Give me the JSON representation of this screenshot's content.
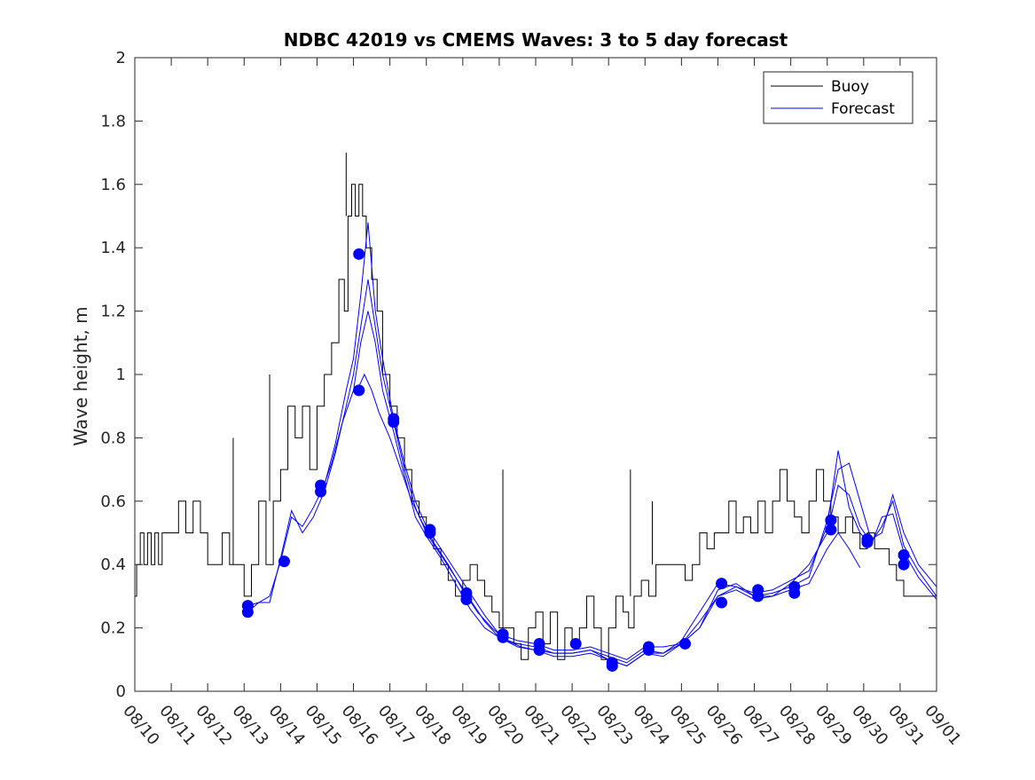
{
  "chart_data": {
    "type": "line",
    "title": "NDBC 42019 vs CMEMS Waves: 3 to 5 day forecast",
    "xlabel": "",
    "ylabel": "Wave height, m",
    "xlim": [
      0,
      22
    ],
    "ylim": [
      0,
      2
    ],
    "grid": false,
    "legend_position": "top-right",
    "x_tick_labels": [
      "08/10",
      "08/11",
      "08/12",
      "08/13",
      "08/14",
      "08/15",
      "08/16",
      "08/17",
      "08/18",
      "08/19",
      "08/20",
      "08/21",
      "08/22",
      "08/23",
      "08/24",
      "08/25",
      "08/26",
      "08/27",
      "08/28",
      "08/29",
      "08/30",
      "08/31",
      "09/01"
    ],
    "y_tick_labels": [
      "0",
      "0.2",
      "0.4",
      "0.6",
      "0.8",
      "1",
      "1.2",
      "1.4",
      "1.6",
      "1.8",
      "2"
    ],
    "colors": {
      "buoy": "#000000",
      "forecast": "#0000ff",
      "axis": "#262626"
    },
    "series": [
      {
        "name": "Buoy",
        "style": "step",
        "x": [
          0,
          0.05,
          0.15,
          0.25,
          0.35,
          0.45,
          0.55,
          0.65,
          0.75,
          0.85,
          1.0,
          1.2,
          1.4,
          1.6,
          1.8,
          2.0,
          2.2,
          2.4,
          2.6,
          2.8,
          3.0,
          3.2,
          3.4,
          3.6,
          3.8,
          4.0,
          4.2,
          4.4,
          4.6,
          4.8,
          5.0,
          5.2,
          5.4,
          5.6,
          5.75,
          5.85,
          5.95,
          6.05,
          6.15,
          6.25,
          6.35,
          6.5,
          6.65,
          6.8,
          7.0,
          7.2,
          7.4,
          7.6,
          7.8,
          8.0,
          8.2,
          8.4,
          8.6,
          8.8,
          9.0,
          9.2,
          9.4,
          9.6,
          9.8,
          10.0,
          10.2,
          10.4,
          10.6,
          10.8,
          11.0,
          11.2,
          11.4,
          11.6,
          11.8,
          12.0,
          12.2,
          12.4,
          12.6,
          12.8,
          13.0,
          13.2,
          13.4,
          13.55,
          13.7,
          13.9,
          14.1,
          14.3,
          14.5,
          14.7,
          14.9,
          15.1,
          15.3,
          15.5,
          15.7,
          15.9,
          16.1,
          16.3,
          16.5,
          16.7,
          16.9,
          17.1,
          17.3,
          17.5,
          17.7,
          17.9,
          18.1,
          18.3,
          18.5,
          18.7,
          18.9,
          19.1,
          19.3,
          19.5,
          19.7,
          19.9,
          20.1,
          20.3,
          20.5,
          20.7,
          20.9,
          21.1,
          21.3,
          21.5,
          21.7
        ],
        "y": [
          0.3,
          0.4,
          0.5,
          0.4,
          0.5,
          0.4,
          0.5,
          0.4,
          0.5,
          0.5,
          0.5,
          0.6,
          0.5,
          0.6,
          0.5,
          0.4,
          0.4,
          0.5,
          0.4,
          0.4,
          0.3,
          0.4,
          0.6,
          0.4,
          0.6,
          0.7,
          0.9,
          0.8,
          0.9,
          0.7,
          0.9,
          1.0,
          1.1,
          1.3,
          1.2,
          1.5,
          1.6,
          1.5,
          1.6,
          1.5,
          1.4,
          1.3,
          1.2,
          1.0,
          0.9,
          0.8,
          0.7,
          0.6,
          0.55,
          0.5,
          0.45,
          0.4,
          0.35,
          0.3,
          0.35,
          0.4,
          0.35,
          0.3,
          0.25,
          0.2,
          0.2,
          0.15,
          0.1,
          0.2,
          0.25,
          0.15,
          0.25,
          0.1,
          0.2,
          0.15,
          0.2,
          0.3,
          0.2,
          0.1,
          0.2,
          0.3,
          0.25,
          0.2,
          0.3,
          0.35,
          0.3,
          0.4,
          0.4,
          0.4,
          0.4,
          0.35,
          0.4,
          0.5,
          0.45,
          0.5,
          0.5,
          0.6,
          0.5,
          0.55,
          0.5,
          0.6,
          0.5,
          0.6,
          0.7,
          0.6,
          0.55,
          0.5,
          0.6,
          0.7,
          0.6,
          0.55,
          0.5,
          0.55,
          0.5,
          0.45,
          0.5,
          0.45,
          0.45,
          0.4,
          0.35,
          0.3,
          0.3,
          0.3,
          0.3
        ],
        "spikes": [
          [
            2.7,
            0.8
          ],
          [
            3.7,
            1.0
          ],
          [
            5.8,
            1.7
          ],
          [
            13.6,
            0.7
          ],
          [
            10.1,
            0.7
          ],
          [
            14.2,
            0.6
          ]
        ]
      },
      {
        "name": "Forecast",
        "style": "runs",
        "runs": [
          {
            "x": [
              3.1,
              3.4,
              3.7,
              4.0,
              4.3,
              4.6,
              4.9,
              5.2,
              5.5,
              5.8,
              6.0,
              6.2,
              6.4,
              6.6,
              6.8,
              7.1,
              7.4,
              7.7,
              8.0,
              8.4,
              8.8,
              9.2,
              9.6,
              10.0,
              10.5,
              11.0,
              11.5,
              12.0,
              12.5,
              13.0,
              13.5,
              14.0,
              14.5,
              15.0,
              15.5,
              16.0,
              16.5,
              17.0,
              17.5,
              18.0,
              18.5,
              19.0,
              19.3,
              19.6,
              19.9,
              20.2,
              20.5,
              20.8,
              21.1,
              21.5,
              22.0
            ],
            "y": [
              0.27,
              0.28,
              0.3,
              0.41,
              0.55,
              0.52,
              0.58,
              0.65,
              0.78,
              0.95,
              1.05,
              1.25,
              1.48,
              1.2,
              1.05,
              0.86,
              0.72,
              0.6,
              0.52,
              0.45,
              0.38,
              0.31,
              0.24,
              0.18,
              0.16,
              0.15,
              0.13,
              0.13,
              0.14,
              0.12,
              0.1,
              0.14,
              0.14,
              0.15,
              0.2,
              0.32,
              0.34,
              0.3,
              0.31,
              0.33,
              0.36,
              0.54,
              0.7,
              0.72,
              0.6,
              0.48,
              0.5,
              0.62,
              0.5,
              0.4,
              0.33
            ]
          },
          {
            "x": [
              3.1,
              3.4,
              3.7,
              4.0,
              4.3,
              4.6,
              4.9,
              5.2,
              5.5,
              5.8,
              6.0,
              6.2,
              6.4,
              6.6,
              6.8,
              7.1,
              7.4,
              7.7,
              8.0,
              8.4,
              8.8,
              9.2,
              9.6,
              10.0,
              10.5,
              11.0,
              11.5,
              12.0,
              12.5,
              13.0,
              13.5,
              14.0,
              14.5,
              15.0,
              15.5,
              16.0,
              16.5,
              17.0,
              17.5,
              18.0,
              18.5,
              19.0,
              19.3,
              19.6,
              19.9,
              20.2,
              20.5,
              20.8,
              21.1,
              21.5,
              22.0
            ],
            "y": [
              0.25,
              0.28,
              0.28,
              0.42,
              0.57,
              0.5,
              0.55,
              0.63,
              0.75,
              0.9,
              1.0,
              1.15,
              1.3,
              1.15,
              1.0,
              0.85,
              0.7,
              0.58,
              0.5,
              0.43,
              0.36,
              0.29,
              0.22,
              0.17,
              0.15,
              0.14,
              0.12,
              0.12,
              0.13,
              0.1,
              0.08,
              0.12,
              0.12,
              0.15,
              0.22,
              0.3,
              0.32,
              0.29,
              0.3,
              0.34,
              0.4,
              0.5,
              0.65,
              0.62,
              0.52,
              0.47,
              0.52,
              0.6,
              0.46,
              0.38,
              0.3
            ]
          },
          {
            "x": [
              5.1,
              5.4,
              5.7,
              6.0,
              6.2,
              6.4,
              6.6,
              6.8,
              7.1,
              7.4,
              7.7,
              8.0,
              8.4,
              8.8,
              9.2,
              9.6,
              10.0,
              10.5,
              11.0,
              11.5,
              12.0,
              12.5,
              13.0,
              13.5,
              14.0,
              14.5,
              15.0,
              15.5,
              16.0,
              16.5,
              17.0,
              17.5,
              18.0,
              18.5,
              19.0,
              19.3,
              19.6,
              19.9,
              20.2,
              20.5,
              20.8,
              21.1,
              21.5,
              22.0
            ],
            "y": [
              0.62,
              0.72,
              0.85,
              0.95,
              1.1,
              1.2,
              1.1,
              0.95,
              0.82,
              0.68,
              0.55,
              0.49,
              0.42,
              0.34,
              0.26,
              0.2,
              0.17,
              0.14,
              0.13,
              0.12,
              0.12,
              0.13,
              0.11,
              0.09,
              0.13,
              0.12,
              0.16,
              0.25,
              0.34,
              0.33,
              0.31,
              0.32,
              0.35,
              0.38,
              0.52,
              0.76,
              0.58,
              0.5,
              0.46,
              0.55,
              0.56,
              0.44,
              0.36,
              0.29
            ]
          },
          {
            "x": [
              6.1,
              6.3,
              6.5,
              6.7,
              7.0,
              7.3,
              7.6,
              7.9,
              8.2,
              8.6,
              9.0,
              9.4,
              9.8,
              10.2,
              10.6,
              11.0,
              11.5,
              12.0,
              12.5,
              13.0,
              13.5,
              14.0,
              14.5,
              15.0,
              15.5,
              16.0,
              16.5,
              17.0,
              17.5,
              18.0,
              18.5,
              19.0,
              19.3,
              19.6,
              19.9
            ],
            "y": [
              0.95,
              1.0,
              0.95,
              0.88,
              0.8,
              0.7,
              0.6,
              0.53,
              0.47,
              0.4,
              0.32,
              0.25,
              0.2,
              0.16,
              0.14,
              0.13,
              0.11,
              0.11,
              0.12,
              0.1,
              0.08,
              0.12,
              0.11,
              0.15,
              0.2,
              0.3,
              0.33,
              0.3,
              0.3,
              0.32,
              0.34,
              0.45,
              0.5,
              0.45,
              0.39
            ]
          }
        ],
        "markers": [
          [
            3.1,
            0.27
          ],
          [
            3.1,
            0.25
          ],
          [
            4.1,
            0.41
          ],
          [
            5.1,
            0.65
          ],
          [
            5.1,
            0.63
          ],
          [
            6.15,
            1.38
          ],
          [
            6.15,
            0.95
          ],
          [
            7.1,
            0.86
          ],
          [
            7.1,
            0.85
          ],
          [
            8.1,
            0.51
          ],
          [
            8.1,
            0.5
          ],
          [
            9.1,
            0.31
          ],
          [
            9.1,
            0.29
          ],
          [
            10.1,
            0.18
          ],
          [
            10.1,
            0.17
          ],
          [
            11.1,
            0.15
          ],
          [
            11.1,
            0.13
          ],
          [
            12.1,
            0.15
          ],
          [
            13.1,
            0.09
          ],
          [
            13.1,
            0.08
          ],
          [
            14.1,
            0.14
          ],
          [
            14.1,
            0.13
          ],
          [
            15.1,
            0.15
          ],
          [
            16.1,
            0.34
          ],
          [
            16.1,
            0.28
          ],
          [
            17.1,
            0.32
          ],
          [
            17.1,
            0.3
          ],
          [
            18.1,
            0.33
          ],
          [
            18.1,
            0.31
          ],
          [
            19.1,
            0.54
          ],
          [
            19.1,
            0.51
          ],
          [
            20.1,
            0.48
          ],
          [
            20.1,
            0.47
          ],
          [
            21.1,
            0.43
          ],
          [
            21.1,
            0.4
          ]
        ]
      }
    ],
    "legend": [
      "Buoy",
      "Forecast"
    ]
  }
}
